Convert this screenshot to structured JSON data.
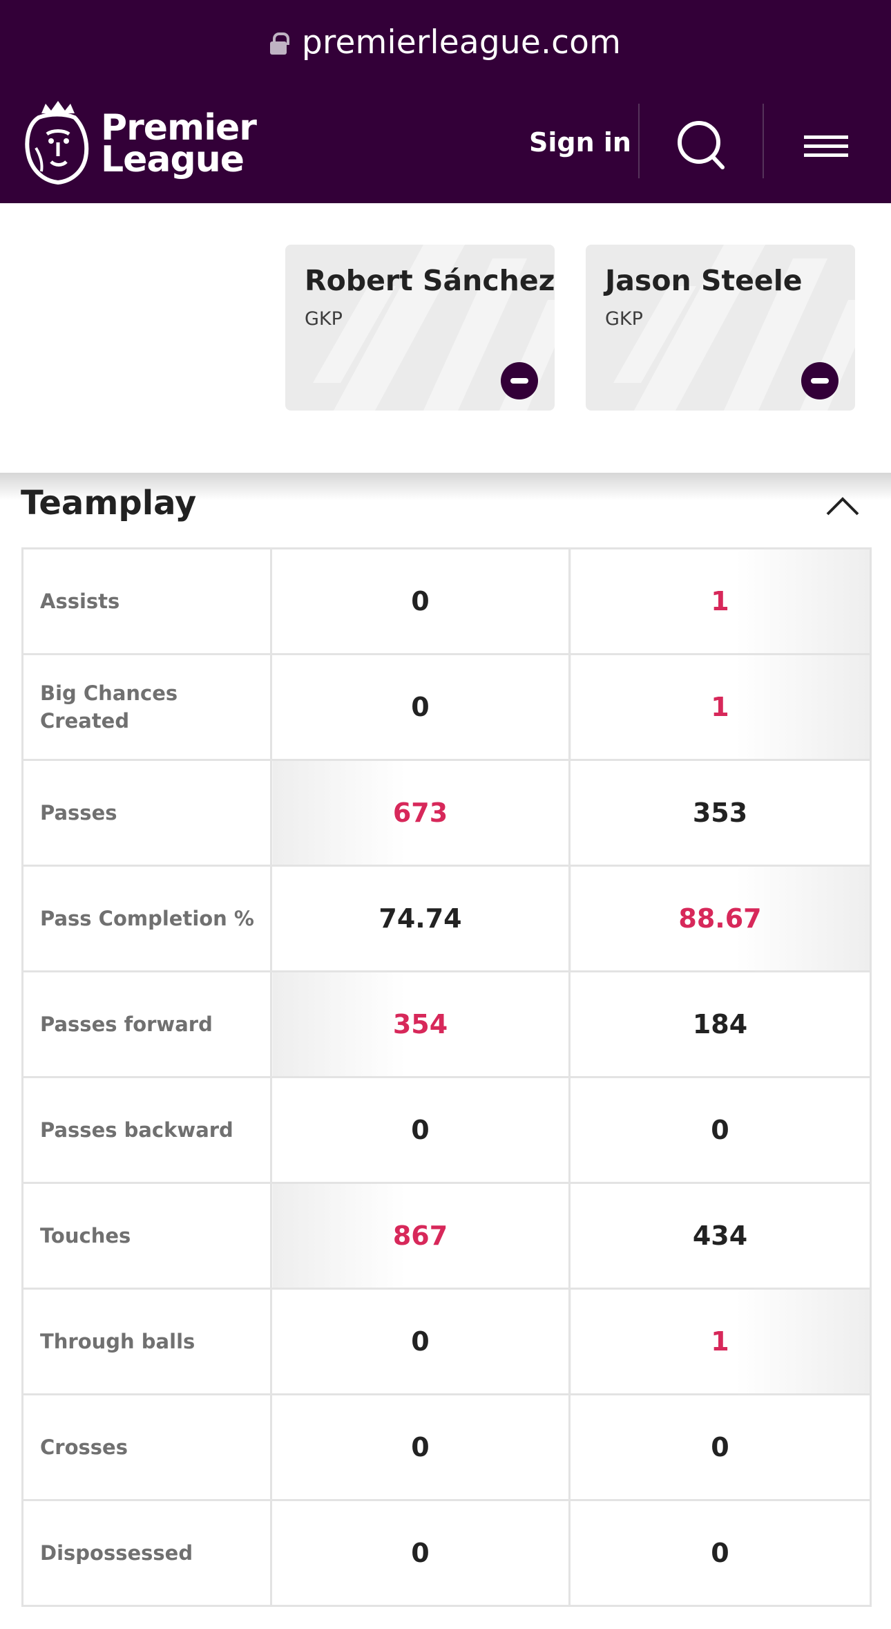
{
  "browser": {
    "url": "premierleague.com"
  },
  "header": {
    "logo_line1": "Premier",
    "logo_line2": "League",
    "sign_in": "Sign in"
  },
  "players": [
    {
      "name": "Robert Sánchez",
      "position": "GKP"
    },
    {
      "name": "Jason Steele",
      "position": "GKP"
    }
  ],
  "section": {
    "title": "Teamplay"
  },
  "colors": {
    "brand_purple": "#330038",
    "highlight": "#d7285a"
  },
  "icons": [
    "lock-icon",
    "search-icon",
    "menu-icon",
    "minus-icon",
    "chevron-up-icon"
  ],
  "rows": [
    {
      "label": "Assists",
      "p1": "0",
      "p2": "1",
      "leader": "p2"
    },
    {
      "label": "Big Chances Created",
      "p1": "0",
      "p2": "1",
      "leader": "p2"
    },
    {
      "label": "Passes",
      "p1": "673",
      "p2": "353",
      "leader": "p1"
    },
    {
      "label": "Pass Completion %",
      "p1": "74.74",
      "p2": "88.67",
      "leader": "p2"
    },
    {
      "label": "Passes forward",
      "p1": "354",
      "p2": "184",
      "leader": "p1"
    },
    {
      "label": "Passes backward",
      "p1": "0",
      "p2": "0",
      "leader": ""
    },
    {
      "label": "Touches",
      "p1": "867",
      "p2": "434",
      "leader": "p1"
    },
    {
      "label": "Through balls",
      "p1": "0",
      "p2": "1",
      "leader": "p2"
    },
    {
      "label": "Crosses",
      "p1": "0",
      "p2": "0",
      "leader": ""
    },
    {
      "label": "Dispossessed",
      "p1": "0",
      "p2": "0",
      "leader": ""
    }
  ]
}
